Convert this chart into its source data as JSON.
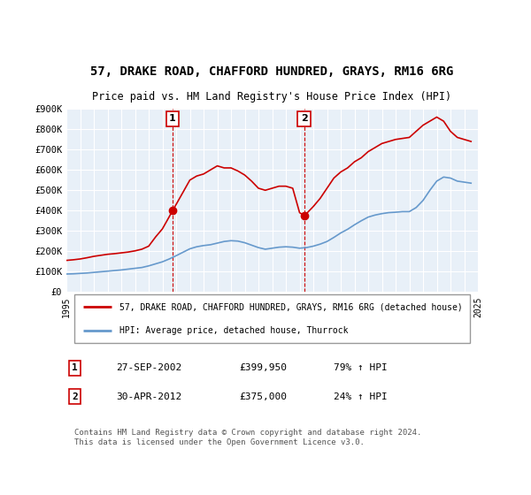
{
  "title": "57, DRAKE ROAD, CHAFFORD HUNDRED, GRAYS, RM16 6RG",
  "subtitle": "Price paid vs. HM Land Registry's House Price Index (HPI)",
  "ylabel": "",
  "ylim": [
    0,
    900000
  ],
  "yticks": [
    0,
    100000,
    200000,
    300000,
    400000,
    500000,
    600000,
    700000,
    800000,
    900000
  ],
  "ytick_labels": [
    "£0",
    "£100K",
    "£200K",
    "£300K",
    "£400K",
    "£500K",
    "£600K",
    "£700K",
    "£800K",
    "£900K"
  ],
  "bg_color": "#e8f0f8",
  "plot_bg_color": "#e8f0f8",
  "red_line_color": "#cc0000",
  "blue_line_color": "#6699cc",
  "sale1_x": 2002.74,
  "sale1_y": 399950,
  "sale2_x": 2012.33,
  "sale2_y": 375000,
  "annotation1_label": "1",
  "annotation2_label": "2",
  "legend_label_red": "57, DRAKE ROAD, CHAFFORD HUNDRED, GRAYS, RM16 6RG (detached house)",
  "legend_label_blue": "HPI: Average price, detached house, Thurrock",
  "table_rows": [
    {
      "num": "1",
      "date": "27-SEP-2002",
      "price": "£399,950",
      "change": "79% ↑ HPI"
    },
    {
      "num": "2",
      "date": "30-APR-2012",
      "price": "£375,000",
      "change": "24% ↑ HPI"
    }
  ],
  "footer": "Contains HM Land Registry data © Crown copyright and database right 2024.\nThis data is licensed under the Open Government Licence v3.0.",
  "red_x": [
    1995.0,
    1995.5,
    1996.0,
    1996.5,
    1997.0,
    1997.5,
    1998.0,
    1998.5,
    1999.0,
    1999.5,
    2000.0,
    2000.5,
    2001.0,
    2001.5,
    2002.0,
    2002.5,
    2002.74,
    2003.0,
    2003.5,
    2004.0,
    2004.5,
    2005.0,
    2005.5,
    2006.0,
    2006.5,
    2007.0,
    2007.5,
    2008.0,
    2008.5,
    2009.0,
    2009.5,
    2010.0,
    2010.5,
    2011.0,
    2011.5,
    2012.0,
    2012.33,
    2012.5,
    2013.0,
    2013.5,
    2014.0,
    2014.5,
    2015.0,
    2015.5,
    2016.0,
    2016.5,
    2017.0,
    2017.5,
    2018.0,
    2018.5,
    2019.0,
    2019.5,
    2020.0,
    2020.5,
    2021.0,
    2021.5,
    2022.0,
    2022.5,
    2023.0,
    2023.5,
    2024.0,
    2024.5
  ],
  "red_y": [
    155000,
    158000,
    162000,
    168000,
    175000,
    180000,
    185000,
    188000,
    192000,
    196000,
    202000,
    210000,
    225000,
    270000,
    310000,
    370000,
    399950,
    430000,
    490000,
    550000,
    570000,
    580000,
    600000,
    620000,
    610000,
    610000,
    595000,
    575000,
    545000,
    510000,
    500000,
    510000,
    520000,
    520000,
    510000,
    390000,
    375000,
    385000,
    420000,
    460000,
    510000,
    560000,
    590000,
    610000,
    640000,
    660000,
    690000,
    710000,
    730000,
    740000,
    750000,
    755000,
    760000,
    790000,
    820000,
    840000,
    860000,
    840000,
    790000,
    760000,
    750000,
    740000
  ],
  "blue_x": [
    1995.0,
    1995.5,
    1996.0,
    1996.5,
    1997.0,
    1997.5,
    1998.0,
    1998.5,
    1999.0,
    1999.5,
    2000.0,
    2000.5,
    2001.0,
    2001.5,
    2002.0,
    2002.5,
    2003.0,
    2003.5,
    2004.0,
    2004.5,
    2005.0,
    2005.5,
    2006.0,
    2006.5,
    2007.0,
    2007.5,
    2008.0,
    2008.5,
    2009.0,
    2009.5,
    2010.0,
    2010.5,
    2011.0,
    2011.5,
    2012.0,
    2012.5,
    2013.0,
    2013.5,
    2014.0,
    2014.5,
    2015.0,
    2015.5,
    2016.0,
    2016.5,
    2017.0,
    2017.5,
    2018.0,
    2018.5,
    2019.0,
    2019.5,
    2020.0,
    2020.5,
    2021.0,
    2021.5,
    2022.0,
    2022.5,
    2023.0,
    2023.5,
    2024.0,
    2024.5
  ],
  "blue_y": [
    88000,
    89000,
    91000,
    93000,
    96000,
    99000,
    102000,
    105000,
    108000,
    112000,
    116000,
    120000,
    128000,
    138000,
    148000,
    162000,
    178000,
    195000,
    212000,
    222000,
    228000,
    232000,
    240000,
    248000,
    252000,
    250000,
    242000,
    230000,
    218000,
    210000,
    215000,
    220000,
    222000,
    220000,
    215000,
    218000,
    225000,
    235000,
    248000,
    268000,
    290000,
    308000,
    330000,
    350000,
    368000,
    378000,
    385000,
    390000,
    392000,
    395000,
    395000,
    415000,
    450000,
    500000,
    545000,
    565000,
    560000,
    545000,
    540000,
    535000
  ],
  "xmin": 1995,
  "xmax": 2025,
  "xticks": [
    1995,
    1996,
    1997,
    1998,
    1999,
    2000,
    2001,
    2002,
    2003,
    2004,
    2005,
    2006,
    2007,
    2008,
    2009,
    2010,
    2011,
    2012,
    2013,
    2014,
    2015,
    2016,
    2017,
    2018,
    2019,
    2020,
    2021,
    2022,
    2023,
    2024,
    2025
  ]
}
